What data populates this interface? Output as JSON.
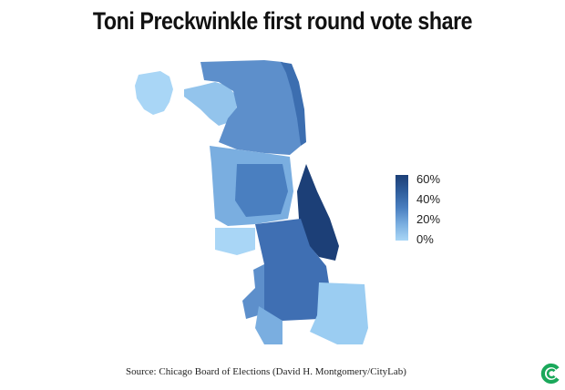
{
  "title": "Toni Preckwinkle first round vote share",
  "legend": {
    "labels": [
      "60%",
      "40%",
      "20%",
      "0%"
    ],
    "colors": [
      "#1c3f77",
      "#2e5d9c",
      "#4a7fc0",
      "#7aaee0",
      "#a9d6f6"
    ]
  },
  "source": "Source: Chicago Board of Elections (David H. Montgomery/CityLab)",
  "colors": {
    "low": "#a9d6f6",
    "mid": "#5d8fcb",
    "high": "#1c3f77",
    "logo": "#1aa85a"
  },
  "logo_icon": "citylab-logo-icon"
}
